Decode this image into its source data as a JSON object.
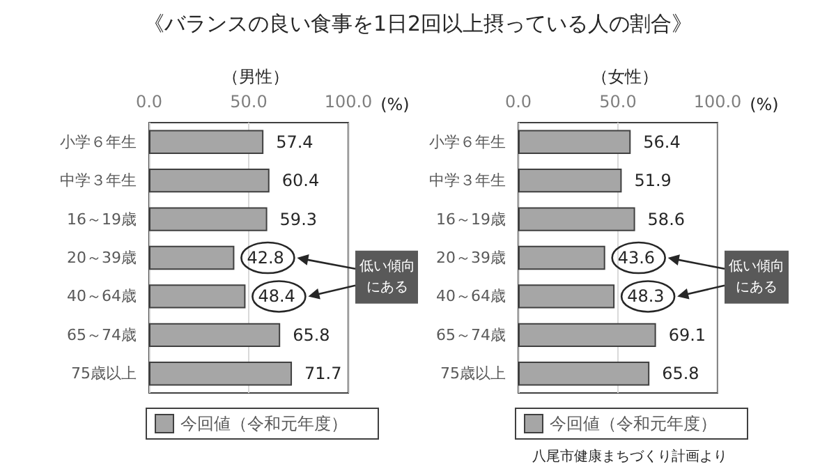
{
  "chart_data": [
    {
      "type": "bar",
      "orientation": "horizontal",
      "title": "《バランスの良い食事を1日2回以上摂っている人の割合》",
      "subtitle": "（男性）",
      "xlabel": "(%)",
      "categories": [
        "小学６年生",
        "中学３年生",
        "16～19歳",
        "20～39歳",
        "40～64歳",
        "65～74歳",
        "75歳以上"
      ],
      "series": [
        {
          "name": "今回値（令和元年度）",
          "color": "#a6a6a6",
          "values": [
            57.4,
            60.4,
            59.3,
            42.8,
            48.4,
            65.8,
            71.7
          ]
        }
      ],
      "xlim": [
        0,
        100
      ],
      "xticks": [
        {
          "value": 0,
          "label": "0.0"
        },
        {
          "value": 50,
          "label": "50.0"
        },
        {
          "value": 100,
          "label": "100.0"
        }
      ],
      "grid": "x",
      "legend": "bottom",
      "data_labels": true,
      "annotations": [
        "低い傾向にある"
      ]
    },
    {
      "type": "bar",
      "orientation": "horizontal",
      "subtitle": "（女性）",
      "xlabel": "(%)",
      "categories": [
        "小学６年生",
        "中学３年生",
        "16～19歳",
        "20～39歳",
        "40～64歳",
        "65～74歳",
        "75歳以上"
      ],
      "series": [
        {
          "name": "今回値（令和元年度）",
          "color": "#a6a6a6",
          "values": [
            56.4,
            51.9,
            58.6,
            43.6,
            48.3,
            69.1,
            65.8
          ]
        }
      ],
      "xlim": [
        0,
        100
      ],
      "xticks": [
        {
          "value": 0,
          "label": "0.0"
        },
        {
          "value": 50,
          "label": "50.0"
        },
        {
          "value": 100,
          "label": "100.0"
        }
      ],
      "grid": "x",
      "legend": "bottom",
      "data_labels": true,
      "annotations": [
        "低い傾向にある",
        "八尾市健康まちづくり計画より"
      ]
    }
  ]
}
